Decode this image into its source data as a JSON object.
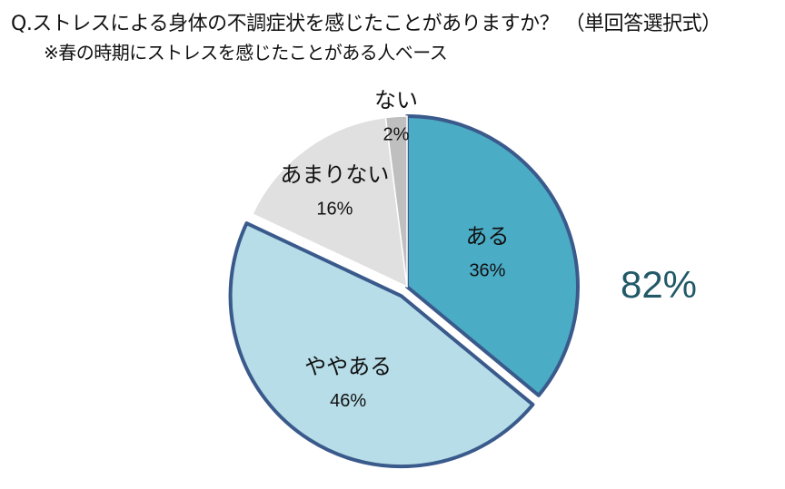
{
  "chart_data": {
    "type": "pie",
    "title": "Q.ストレスによる身体の不調症状を感じたことがありますか？ （単回答選択式）",
    "subtitle": "※春の時期にストレスを感じたことがある人ベース",
    "slices": [
      {
        "label": "ある",
        "value": 36,
        "value_label": "36%",
        "color": "#4bacc6",
        "exploded": false
      },
      {
        "label": "ややある",
        "value": 46,
        "value_label": "46%",
        "color": "#b7dde8",
        "exploded": true
      },
      {
        "label": "あまりない",
        "value": 16,
        "value_label": "16%",
        "color": "#e0e0e0",
        "exploded": false
      },
      {
        "label": "ない",
        "value": 2,
        "value_label": "2%",
        "color": "#bfbfbf",
        "exploded": false
      }
    ],
    "annotation": "82%",
    "annotation_color": "#215967",
    "highlight_border_color": "#3a5a8c"
  }
}
